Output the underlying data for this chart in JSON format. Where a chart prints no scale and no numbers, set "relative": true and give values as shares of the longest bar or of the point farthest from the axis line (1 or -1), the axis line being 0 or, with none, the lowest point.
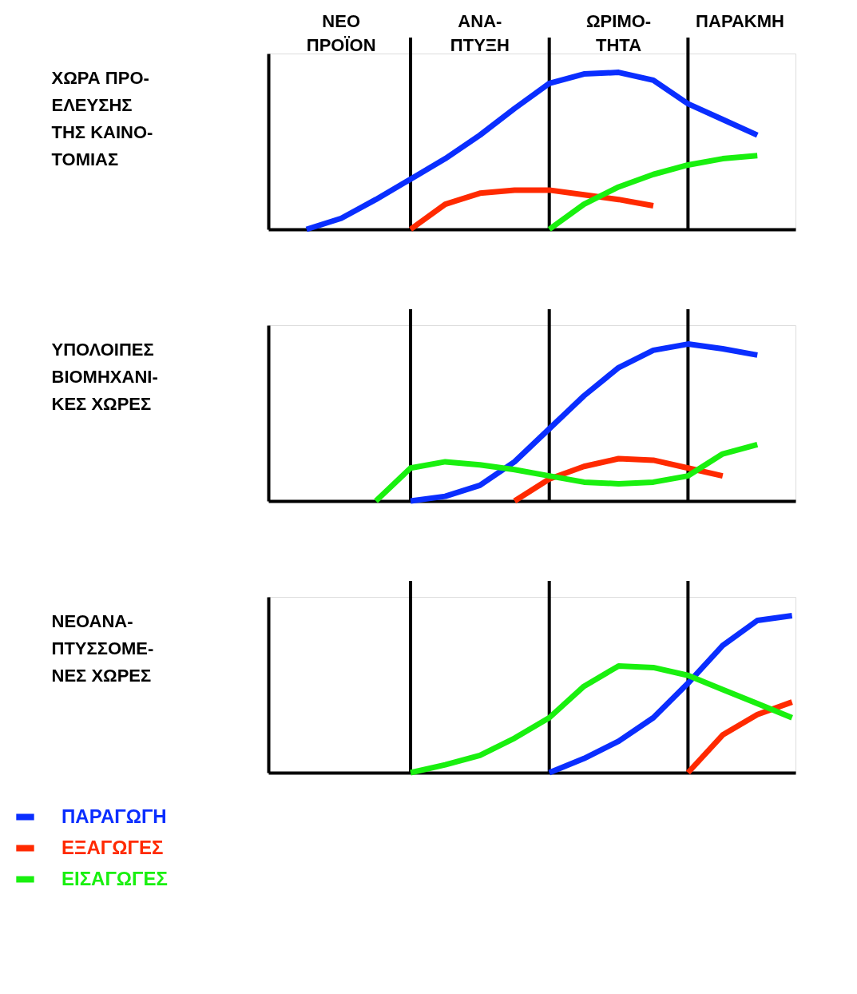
{
  "chart_data": [
    {
      "type": "line",
      "relative": true,
      "ylabel": "ΧΩΡΑ ΠΡΟ-\nΕΛΕΥΣΗΣ\nΤΗΣ ΚΑΙΝΟ-\nΤΟΜΙΑΣ",
      "legend": "bottom left",
      "grid": "x",
      "annotations": [
        "ΝΕΟ\nΠΡΟΪΟΝ",
        "ΑΝΑ-\nΠΤΥΞΗ",
        "ΩΡΙΜΟ-\nΤΗΤΑ",
        "ΠΑΡΑΚΜΗ"
      ],
      "categories": [
        null,
        null,
        null,
        null,
        null,
        null,
        null,
        null,
        null,
        null,
        null,
        null,
        null,
        null,
        null,
        null
      ],
      "series": [
        {
          "name": "ΠΑΡΑΓΩΓΗ",
          "color": "#0a2eff",
          "values": [
            null,
            0,
            0.07,
            0.19,
            0.32,
            0.45,
            0.6,
            0.77,
            0.93,
            0.99,
            1.0,
            0.95,
            0.8,
            0.7,
            0.6,
            null
          ]
        },
        {
          "name": "ΕΞΑΓΩΓΕΣ",
          "color": "#ff2a00",
          "values": [
            null,
            null,
            null,
            null,
            0,
            0.16,
            0.23,
            0.25,
            0.25,
            0.22,
            0.19,
            0.15,
            null,
            null,
            null,
            null
          ]
        },
        {
          "name": "ΕΙΣΑΓΩΓΕΣ",
          "color": "#19f00f",
          "values": [
            null,
            null,
            null,
            null,
            null,
            null,
            null,
            null,
            0,
            0.16,
            0.27,
            0.35,
            0.41,
            0.45,
            0.47,
            null
          ]
        }
      ]
    },
    {
      "type": "line",
      "relative": true,
      "ylabel": "ΥΠΟΛΟΙΠΕΣ\nΒΙΟΜΗΧΑΝΙ-\nΚΕΣ ΧΩΡΕΣ",
      "grid": "x",
      "categories": [
        null,
        null,
        null,
        null,
        null,
        null,
        null,
        null,
        null,
        null,
        null,
        null,
        null,
        null,
        null,
        null
      ],
      "series": [
        {
          "color": "#0a2eff",
          "values": [
            null,
            null,
            null,
            null,
            0,
            0.03,
            0.1,
            0.25,
            0.46,
            0.67,
            0.85,
            0.96,
            1.0,
            0.97,
            0.93,
            null
          ]
        },
        {
          "color": "#ff2a00",
          "values": [
            null,
            null,
            null,
            null,
            null,
            null,
            null,
            0,
            0.14,
            0.22,
            0.27,
            0.26,
            0.21,
            0.16,
            null,
            null
          ]
        },
        {
          "color": "#19f00f",
          "values": [
            null,
            null,
            null,
            0,
            0.21,
            0.25,
            0.23,
            0.2,
            0.16,
            0.12,
            0.11,
            0.12,
            0.16,
            0.3,
            0.36,
            null
          ]
        }
      ]
    },
    {
      "type": "line",
      "relative": true,
      "ylabel": "ΝΕΟΑΝΑ-\nΠΤΥΣΣΟΜΕ-\nΝΕΣ ΧΩΡΕΣ",
      "grid": "x",
      "categories": [
        null,
        null,
        null,
        null,
        null,
        null,
        null,
        null,
        null,
        null,
        null,
        null,
        null,
        null,
        null,
        null
      ],
      "series": [
        {
          "color": "#0a2eff",
          "values": [
            null,
            null,
            null,
            null,
            null,
            null,
            null,
            null,
            0,
            0.09,
            0.2,
            0.35,
            0.57,
            0.81,
            0.97,
            1.0
          ]
        },
        {
          "color": "#ff2a00",
          "values": [
            null,
            null,
            null,
            null,
            null,
            null,
            null,
            null,
            null,
            null,
            null,
            null,
            0,
            0.24,
            0.37,
            0.45
          ]
        },
        {
          "color": "#19f00f",
          "values": [
            null,
            null,
            null,
            null,
            0,
            0.05,
            0.11,
            0.22,
            0.35,
            0.55,
            0.68,
            0.67,
            0.62,
            0.53,
            0.44,
            0.35
          ]
        }
      ]
    }
  ]
}
